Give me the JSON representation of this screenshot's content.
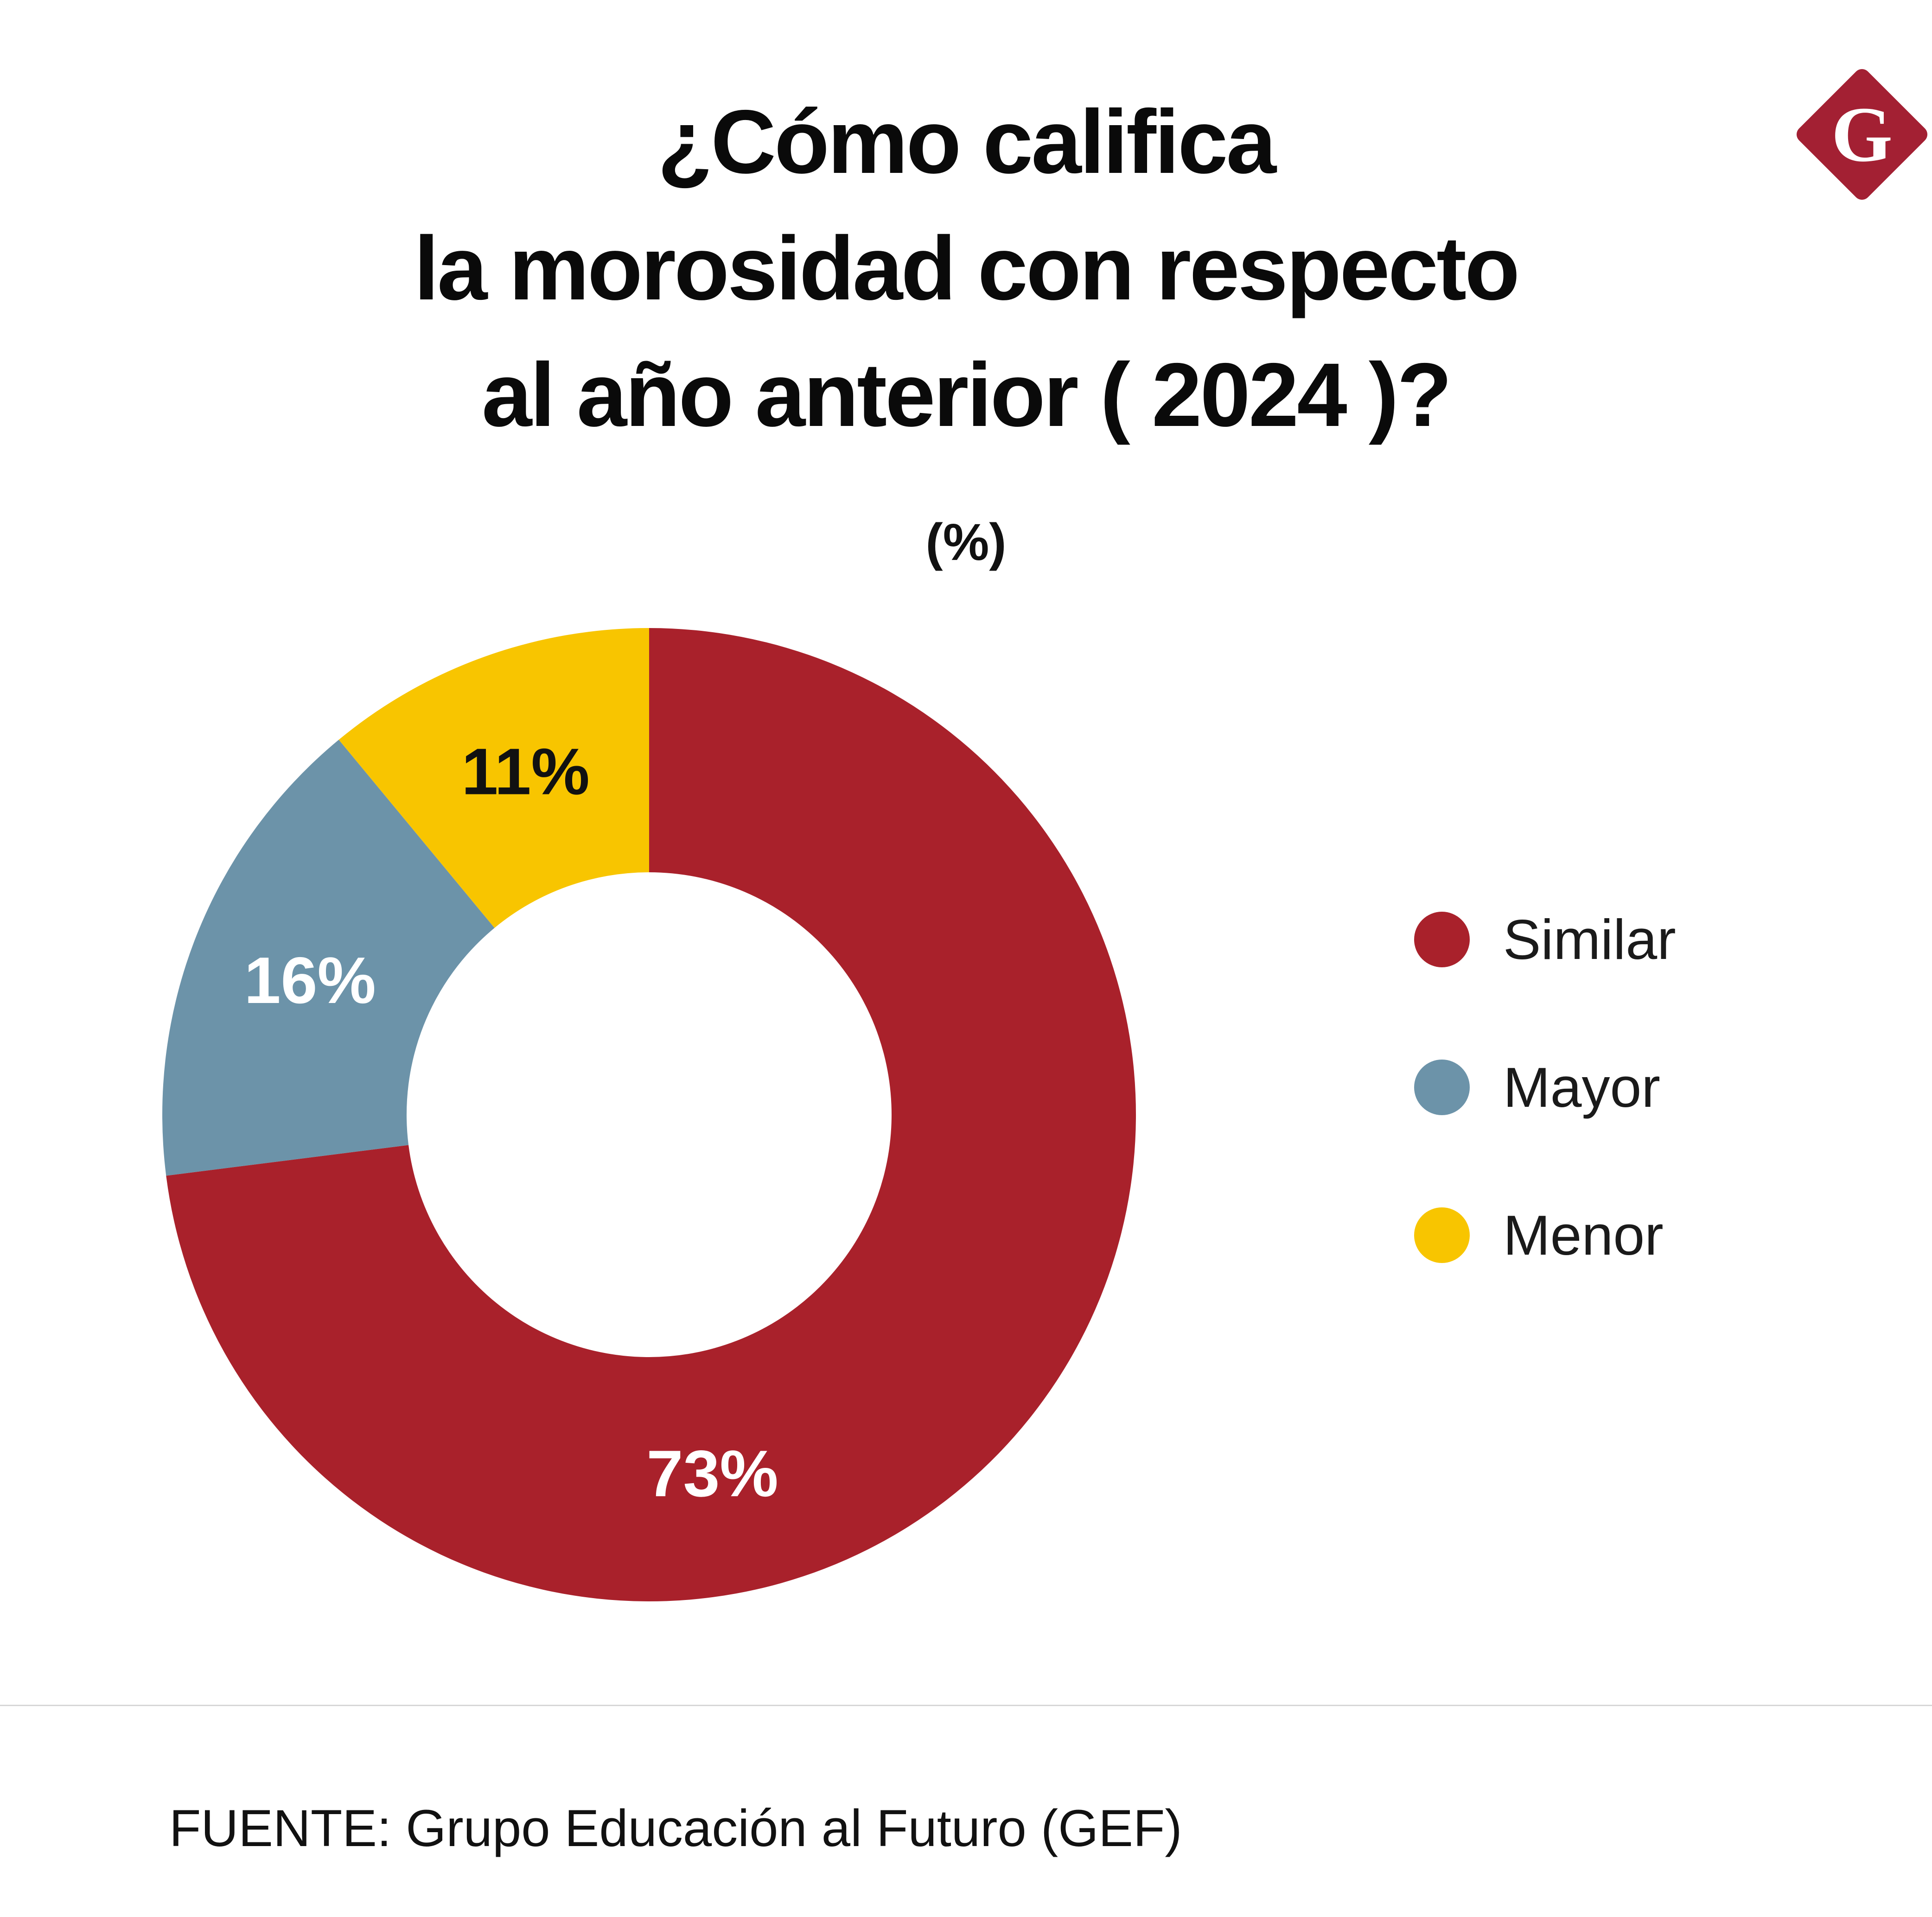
{
  "logo": {
    "letter": "G",
    "background": "#a32033"
  },
  "title": {
    "lines": [
      "¿Cómo califica",
      "la morosidad con respecto",
      "al año anterior ( 2024 )?"
    ]
  },
  "subtitle": "(%)",
  "source": "FUENTE: Grupo Educación al Futuro (GEF)",
  "chart_data": {
    "type": "pie",
    "donut": true,
    "title": "¿Cómo califica la morosidad con respecto al año anterior ( 2024 )?",
    "unit_label": "(%)",
    "start_angle_deg": 0,
    "direction": "clockwise",
    "legend_position": "right",
    "categories": [
      "Similar",
      "Mayor",
      "Menor"
    ],
    "values": [
      73,
      16,
      11
    ],
    "segments": [
      {
        "label": "Similar",
        "value": 73,
        "data_label": "73%",
        "color": "#a9212b",
        "label_color": "#ffffff",
        "label_angle_deg": 170
      },
      {
        "label": "Mayor",
        "value": 16,
        "data_label": "16%",
        "color": "#6c93a9",
        "label_color": "#ffffff",
        "label_angle_deg": 291.6
      },
      {
        "label": "Menor",
        "value": 11,
        "data_label": "11%",
        "color": "#f8c500",
        "label_color": "#111111",
        "label_angle_deg": 340.2
      }
    ]
  }
}
